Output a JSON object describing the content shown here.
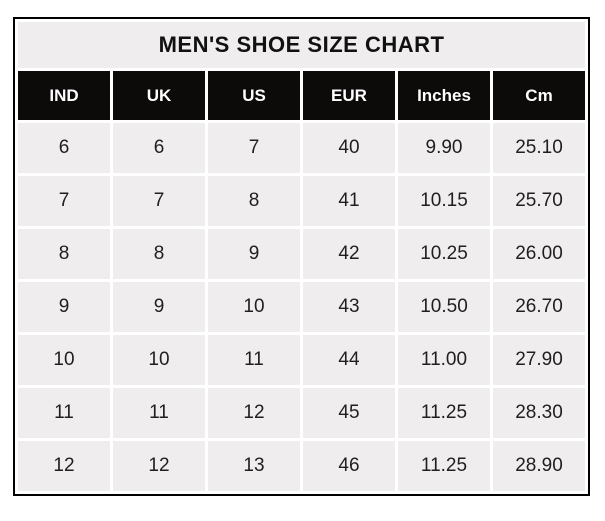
{
  "title": "MEN'S SHOE SIZE CHART",
  "chart_data": {
    "type": "table",
    "title": "MEN'S SHOE SIZE CHART",
    "columns": [
      "IND",
      "UK",
      "US",
      "EUR",
      "Inches",
      "Cm"
    ],
    "rows": [
      [
        "6",
        "6",
        "7",
        "40",
        "9.90",
        "25.10"
      ],
      [
        "7",
        "7",
        "8",
        "41",
        "10.15",
        "25.70"
      ],
      [
        "8",
        "8",
        "9",
        "42",
        "10.25",
        "26.00"
      ],
      [
        "9",
        "9",
        "10",
        "43",
        "10.50",
        "26.70"
      ],
      [
        "10",
        "10",
        "11",
        "44",
        "11.00",
        "27.90"
      ],
      [
        "11",
        "11",
        "12",
        "45",
        "11.25",
        "28.30"
      ],
      [
        "12",
        "12",
        "13",
        "46",
        "11.25",
        "28.90"
      ]
    ]
  },
  "colors": {
    "header_bg": "#0d0a0a",
    "header_text": "#ffffff",
    "cell_bg": "#efeded",
    "cell_text": "#1f1f1f",
    "frame_border": "#000000",
    "gutter": "#ffffff"
  }
}
